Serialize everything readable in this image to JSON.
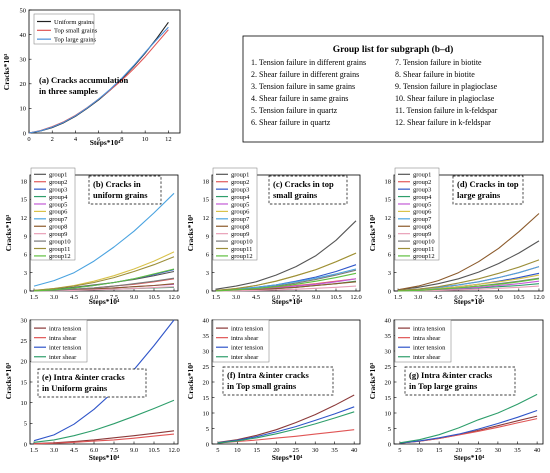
{
  "chart_data": [
    {
      "id": "a",
      "type": "line",
      "annotation": [
        "(a)  Cracks accumulation",
        "in three samples"
      ],
      "xlabel": "Steps*10⁴",
      "ylabel": "Cracks*10³",
      "xlim": [
        0,
        13
      ],
      "ylim": [
        0,
        50
      ],
      "xticks": [
        0,
        2,
        4,
        6,
        8,
        10,
        12
      ],
      "yticks": [
        0,
        10,
        20,
        30,
        40,
        50
      ],
      "x": [
        0,
        1,
        2,
        3,
        4,
        5,
        6,
        7,
        8,
        9,
        10,
        11,
        12
      ],
      "legend_position": "top-left",
      "series": [
        {
          "name": "Uniform grains",
          "color": "#222222",
          "values": [
            0,
            0.8,
            2.2,
            4.2,
            6.8,
            10,
            13.5,
            17.5,
            22,
            27,
            32.5,
            38.5,
            45
          ]
        },
        {
          "name": "Top small grains",
          "color": "#e05555",
          "values": [
            0,
            1.0,
            2.6,
            4.6,
            7.2,
            10.3,
            13.8,
            17.5,
            21.5,
            26,
            31,
            36.5,
            42
          ]
        },
        {
          "name": "Top large grains",
          "color": "#4a90d9",
          "values": [
            0,
            0.9,
            2.4,
            4.4,
            7.0,
            10.2,
            13.8,
            17.8,
            22.3,
            27.3,
            32.8,
            38,
            43
          ]
        }
      ]
    },
    {
      "id": "b",
      "type": "line",
      "annotation": [
        "(b) Cracks in",
        "uniform grains"
      ],
      "xlabel": "Steps*10⁴",
      "ylabel": "Cracks*10³",
      "xlim": [
        1.2,
        12.3
      ],
      "ylim": [
        0,
        19
      ],
      "xticks": [
        1.5,
        3.0,
        4.5,
        6.0,
        7.5,
        9.0,
        10.5,
        12.0
      ],
      "yticks": [
        0,
        3,
        6,
        9,
        12,
        15,
        18
      ],
      "x": [
        1.5,
        3.0,
        4.5,
        6.0,
        7.5,
        9.0,
        10.5,
        12.0
      ],
      "legend_position": "top-left",
      "series": [
        {
          "name": "group1",
          "color": "#555555",
          "values": [
            0.1,
            0.3,
            0.6,
            1.0,
            1.4,
            1.9,
            2.5,
            3.2
          ]
        },
        {
          "name": "group2",
          "color": "#e05a5a",
          "values": [
            0.05,
            0.15,
            0.3,
            0.5,
            0.8,
            1.1,
            1.5,
            2.0
          ]
        },
        {
          "name": "group3",
          "color": "#2f55c9",
          "values": [
            0.05,
            0.2,
            0.5,
            0.9,
            1.4,
            2.0,
            2.7,
            3.5
          ]
        },
        {
          "name": "group4",
          "color": "#2e9e6b",
          "values": [
            0.0,
            0.05,
            0.1,
            0.2,
            0.3,
            0.4,
            0.5,
            0.6
          ]
        },
        {
          "name": "group5",
          "color": "#c45ad6",
          "values": [
            0.0,
            0.1,
            0.2,
            0.35,
            0.5,
            0.7,
            0.9,
            1.1
          ]
        },
        {
          "name": "group6",
          "color": "#d9c24a",
          "values": [
            0.1,
            0.4,
            0.9,
            1.6,
            2.5,
            3.6,
            4.9,
            6.4
          ]
        },
        {
          "name": "group7",
          "color": "#4aa3e0",
          "values": [
            0.8,
            1.7,
            3.0,
            4.9,
            7.2,
            9.8,
            12.8,
            16.0
          ]
        },
        {
          "name": "group8",
          "color": "#8b5a2b",
          "values": [
            0.0,
            0.1,
            0.2,
            0.35,
            0.5,
            0.7,
            0.9,
            1.2
          ]
        },
        {
          "name": "group9",
          "color": "#e8a0b8",
          "values": [
            0.0,
            0.05,
            0.1,
            0.2,
            0.3,
            0.4,
            0.55,
            0.7
          ]
        },
        {
          "name": "group10",
          "color": "#7a7a7a",
          "values": [
            0.0,
            0.1,
            0.3,
            0.5,
            0.8,
            1.2,
            1.6,
            2.1
          ]
        },
        {
          "name": "group11",
          "color": "#9c8f3a",
          "values": [
            0.1,
            0.4,
            0.8,
            1.4,
            2.2,
            3.2,
            4.3,
            5.6
          ]
        },
        {
          "name": "group12",
          "color": "#5fbf3f",
          "values": [
            0.0,
            0.2,
            0.5,
            0.9,
            1.4,
            2.0,
            2.8,
            3.6
          ]
        }
      ]
    },
    {
      "id": "c",
      "type": "line",
      "annotation": [
        "(c) Cracks in top",
        "small grains"
      ],
      "xlabel": "Steps*10⁴",
      "ylabel": "Cracks*10³",
      "xlim": [
        1.2,
        12.3
      ],
      "ylim": [
        0,
        19
      ],
      "xticks": [
        1.5,
        3.0,
        4.5,
        6.0,
        7.5,
        9.0,
        10.5,
        12.0
      ],
      "yticks": [
        0,
        3,
        6,
        9,
        12,
        15,
        18
      ],
      "x": [
        1.5,
        3.0,
        4.5,
        6.0,
        7.5,
        9.0,
        10.5,
        12.0
      ],
      "legend_position": "top-left",
      "series": [
        {
          "name": "group1",
          "color": "#555555",
          "values": [
            0.3,
            0.8,
            1.5,
            2.6,
            4.0,
            5.8,
            8.3,
            11.5
          ]
        },
        {
          "name": "group2",
          "color": "#e05a5a",
          "values": [
            0.1,
            0.2,
            0.4,
            0.6,
            0.9,
            1.2,
            1.6,
            2.0
          ]
        },
        {
          "name": "group3",
          "color": "#2f55c9",
          "values": [
            0.1,
            0.3,
            0.6,
            1.0,
            1.6,
            2.3,
            3.2,
            4.3
          ]
        },
        {
          "name": "group4",
          "color": "#2e9e6b",
          "values": [
            0.0,
            0.1,
            0.2,
            0.4,
            0.6,
            0.9,
            1.2,
            1.6
          ]
        },
        {
          "name": "group5",
          "color": "#c45ad6",
          "values": [
            0.0,
            0.1,
            0.3,
            0.5,
            0.8,
            1.1,
            1.5,
            2.0
          ]
        },
        {
          "name": "group6",
          "color": "#d9c24a",
          "values": [
            0.1,
            0.4,
            0.9,
            1.6,
            2.5,
            3.5,
            4.8,
            6.2
          ]
        },
        {
          "name": "group7",
          "color": "#4aa3e0",
          "values": [
            0.1,
            0.3,
            0.6,
            1.0,
            1.5,
            2.1,
            2.8,
            3.6
          ]
        },
        {
          "name": "group8",
          "color": "#8b5a2b",
          "values": [
            0.0,
            0.1,
            0.2,
            0.4,
            0.6,
            0.9,
            1.2,
            1.5
          ]
        },
        {
          "name": "group9",
          "color": "#e8a0b8",
          "values": [
            0.0,
            0.05,
            0.1,
            0.2,
            0.3,
            0.45,
            0.6,
            0.8
          ]
        },
        {
          "name": "group10",
          "color": "#7a7a7a",
          "values": [
            0.0,
            0.2,
            0.4,
            0.8,
            1.3,
            1.9,
            2.6,
            3.4
          ]
        },
        {
          "name": "group11",
          "color": "#9c8f3a",
          "values": [
            0.1,
            0.4,
            0.9,
            1.6,
            2.5,
            3.5,
            4.8,
            6.2
          ]
        },
        {
          "name": "group12",
          "color": "#5fbf3f",
          "values": [
            0.0,
            0.2,
            0.4,
            0.7,
            1.1,
            1.6,
            2.2,
            2.9
          ]
        }
      ]
    },
    {
      "id": "d",
      "type": "line",
      "annotation": [
        "(d) Cracks in top",
        "large grains"
      ],
      "xlabel": "Steps*10⁴",
      "ylabel": "Cracks*10³",
      "xlim": [
        1.2,
        12.3
      ],
      "ylim": [
        0,
        19
      ],
      "xticks": [
        1.5,
        3.0,
        4.5,
        6.0,
        7.5,
        9.0,
        10.5,
        12.0
      ],
      "yticks": [
        0,
        3,
        6,
        9,
        12,
        15,
        18
      ],
      "x": [
        1.5,
        3.0,
        4.5,
        6.0,
        7.5,
        9.0,
        10.5,
        12.0
      ],
      "legend_position": "top-left",
      "series": [
        {
          "name": "group1",
          "color": "#555555",
          "values": [
            0.2,
            0.6,
            1.2,
            2.0,
            3.1,
            4.5,
            6.2,
            8.2
          ]
        },
        {
          "name": "group2",
          "color": "#e05a5a",
          "values": [
            0.1,
            0.3,
            0.6,
            1.0,
            1.5,
            2.2,
            3.0,
            4.0
          ]
        },
        {
          "name": "group3",
          "color": "#2f55c9",
          "values": [
            0.1,
            0.2,
            0.4,
            0.7,
            1.1,
            1.6,
            2.2,
            2.9
          ]
        },
        {
          "name": "group4",
          "color": "#2e9e6b",
          "values": [
            0.0,
            0.1,
            0.2,
            0.3,
            0.5,
            0.7,
            0.9,
            1.2
          ]
        },
        {
          "name": "group5",
          "color": "#c45ad6",
          "values": [
            0.0,
            0.1,
            0.2,
            0.4,
            0.6,
            0.9,
            1.2,
            1.6
          ]
        },
        {
          "name": "group6",
          "color": "#d9c24a",
          "values": [
            0.0,
            0.2,
            0.4,
            0.7,
            1.1,
            1.5,
            2.0,
            2.6
          ]
        },
        {
          "name": "group7",
          "color": "#4aa3e0",
          "values": [
            0.1,
            0.3,
            0.6,
            1.0,
            1.5,
            2.2,
            3.0,
            4.0
          ]
        },
        {
          "name": "group8",
          "color": "#8b5a2b",
          "values": [
            0.2,
            0.8,
            1.7,
            3.0,
            4.8,
            7.0,
            9.7,
            12.7
          ]
        },
        {
          "name": "group9",
          "color": "#e8a0b8",
          "values": [
            0.0,
            0.05,
            0.1,
            0.2,
            0.3,
            0.45,
            0.6,
            0.8
          ]
        },
        {
          "name": "group10",
          "color": "#7a7a7a",
          "values": [
            0.0,
            0.1,
            0.3,
            0.5,
            0.8,
            1.2,
            1.6,
            2.1
          ]
        },
        {
          "name": "group11",
          "color": "#9c8f3a",
          "values": [
            0.1,
            0.3,
            0.7,
            1.3,
            2.0,
            2.9,
            3.9,
            5.1
          ]
        },
        {
          "name": "group12",
          "color": "#5fbf3f",
          "values": [
            0.0,
            0.1,
            0.3,
            0.5,
            0.8,
            1.1,
            1.5,
            2.0
          ]
        }
      ]
    },
    {
      "id": "e",
      "type": "line",
      "annotation": [
        "(e) Intra &inter cracks",
        "in Uniform grains"
      ],
      "xlabel": "Steps*10⁴",
      "ylabel": "Cracks*10³",
      "xlim": [
        1.2,
        12.3
      ],
      "ylim": [
        0,
        30
      ],
      "xticks": [
        1.5,
        3.0,
        4.5,
        6.0,
        7.5,
        9.0,
        10.5,
        12.0
      ],
      "yticks": [
        0,
        5,
        10,
        15,
        20,
        25,
        30
      ],
      "x": [
        1.5,
        3.0,
        4.5,
        6.0,
        7.5,
        9.0,
        10.5,
        12.0
      ],
      "legend_position": "top-left",
      "series": [
        {
          "name": "intra tension",
          "color": "#8b3a3a",
          "values": [
            0.1,
            0.3,
            0.6,
            1.0,
            1.5,
            2.0,
            2.6,
            3.2
          ]
        },
        {
          "name": "intra shear",
          "color": "#e05555",
          "values": [
            0.05,
            0.2,
            0.4,
            0.7,
            1.0,
            1.4,
            1.9,
            2.4
          ]
        },
        {
          "name": "inter tension",
          "color": "#2f55c9",
          "values": [
            0.8,
            2.2,
            4.8,
            8.4,
            12.8,
            18.0,
            23.8,
            30.0
          ]
        },
        {
          "name": "inter shear",
          "color": "#2e9e6b",
          "values": [
            0.4,
            1.0,
            2.0,
            3.3,
            4.9,
            6.7,
            8.6,
            10.6
          ]
        }
      ]
    },
    {
      "id": "f",
      "type": "line",
      "annotation": [
        "(f)  Intra &inter cracks",
        "in Top small grains"
      ],
      "xlabel": "Steps*10⁴",
      "ylabel": "Cracks*10³",
      "xlim": [
        3.5,
        41.5
      ],
      "ylim": [
        0,
        40
      ],
      "xticks": [
        5,
        10,
        15,
        20,
        25,
        30,
        35,
        40
      ],
      "yticks": [
        0,
        5,
        10,
        15,
        20,
        25,
        30,
        35,
        40
      ],
      "x": [
        5,
        10,
        15,
        20,
        25,
        30,
        35,
        40
      ],
      "legend_position": "top-left",
      "series": [
        {
          "name": "intra tension",
          "color": "#8b3a3a",
          "values": [
            0.5,
            1.4,
            2.8,
            4.6,
            6.9,
            9.5,
            12.5,
            15.8
          ]
        },
        {
          "name": "intra shear",
          "color": "#e05555",
          "values": [
            0.3,
            0.8,
            1.3,
            1.9,
            2.5,
            3.2,
            3.9,
            4.6
          ]
        },
        {
          "name": "inter tension",
          "color": "#2f55c9",
          "values": [
            0.4,
            1.2,
            2.4,
            3.9,
            5.6,
            7.6,
            9.7,
            12.0
          ]
        },
        {
          "name": "inter shear",
          "color": "#2e9e6b",
          "values": [
            0.3,
            1.0,
            2.0,
            3.3,
            4.8,
            6.5,
            8.4,
            10.4
          ]
        }
      ]
    },
    {
      "id": "g",
      "type": "line",
      "annotation": [
        "(g)  Intra &inter cracks",
        "in Top large grains"
      ],
      "xlabel": "Steps*10⁴",
      "ylabel": "Cracks*10³",
      "xlim": [
        3.5,
        41.5
      ],
      "ylim": [
        0,
        40
      ],
      "xticks": [
        5,
        10,
        15,
        20,
        25,
        30,
        35,
        40
      ],
      "yticks": [
        0,
        5,
        10,
        15,
        20,
        25,
        30,
        35,
        40
      ],
      "x": [
        5,
        10,
        15,
        20,
        25,
        30,
        35,
        40
      ],
      "legend_position": "top-left",
      "series": [
        {
          "name": "intra tension",
          "color": "#8b3a3a",
          "values": [
            0.3,
            0.9,
            1.8,
            3.0,
            4.4,
            5.9,
            7.5,
            9.0
          ]
        },
        {
          "name": "intra shear",
          "color": "#e05555",
          "values": [
            0.3,
            0.9,
            1.8,
            2.9,
            4.1,
            5.4,
            6.8,
            8.2
          ]
        },
        {
          "name": "inter tension",
          "color": "#2f55c9",
          "values": [
            0.3,
            1.0,
            2.0,
            3.2,
            4.8,
            6.6,
            8.6,
            10.8
          ]
        },
        {
          "name": "inter shear",
          "color": "#2e9e6b",
          "values": [
            0.4,
            1.4,
            3.0,
            5.2,
            7.8,
            10.0,
            12.8,
            16.0
          ]
        }
      ]
    }
  ],
  "group_list": {
    "title": "Group list for subgraph (b–d)",
    "items": [
      "1. Tension failure in different grains",
      "2. Shear failure in different grains",
      "3. Tension failure in same grains",
      "4. Shear failure in same grains",
      "5. Tension failure in quartz",
      "6. Shear failure in quartz",
      "7. Tension failure in biotite",
      "8. Shear failure in biotite",
      "9. Tension failure in plagioclase",
      "10. Shear failure in plagioclase",
      "11. Tension failure in k-feldspar",
      "12. Shear failure in k-feldspar"
    ]
  }
}
